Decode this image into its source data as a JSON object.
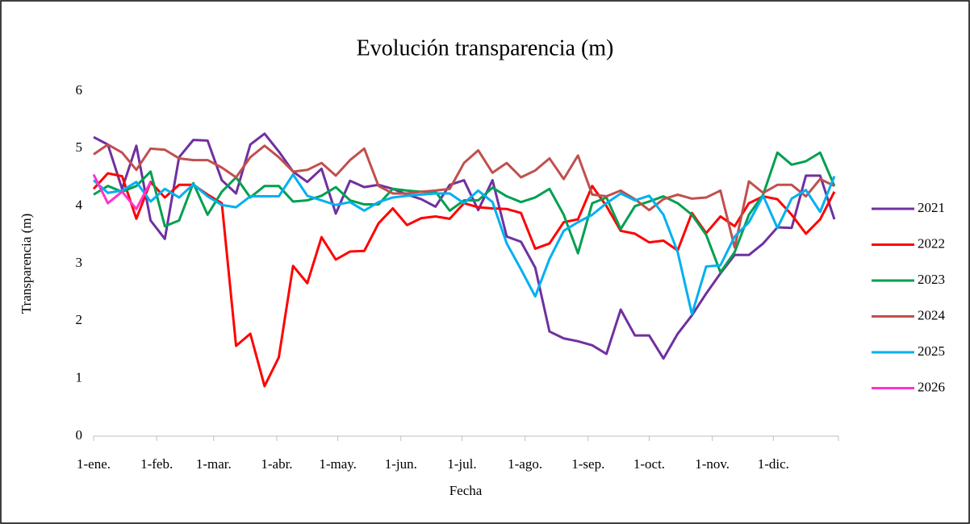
{
  "chart_data": {
    "type": "line",
    "title": "Evolución transparencia (m)",
    "x_label": "Fecha",
    "y_label": "Transparencia (m)",
    "x": [
      0,
      7,
      14,
      21,
      28,
      35,
      42,
      49,
      56,
      63,
      70,
      77,
      84,
      91,
      98,
      105,
      112,
      119,
      126,
      133,
      140,
      147,
      154,
      161,
      168,
      175,
      182,
      189,
      196,
      203,
      210,
      217,
      224,
      231,
      238,
      245,
      252,
      259,
      266,
      273,
      280,
      287,
      294,
      301,
      308,
      315,
      322,
      329,
      336,
      343,
      350,
      357,
      364
    ],
    "xlim": [
      0,
      366
    ],
    "xticks": [
      {
        "value": 0,
        "label": "1-ene."
      },
      {
        "value": 31,
        "label": "1-feb."
      },
      {
        "value": 59,
        "label": "1-mar."
      },
      {
        "value": 90,
        "label": "1-abr."
      },
      {
        "value": 120,
        "label": "1-may."
      },
      {
        "value": 151,
        "label": "1-jun."
      },
      {
        "value": 181,
        "label": "1-jul."
      },
      {
        "value": 212,
        "label": "1-ago."
      },
      {
        "value": 243,
        "label": "1-sep."
      },
      {
        "value": 273,
        "label": "1-oct."
      },
      {
        "value": 304,
        "label": "1-nov."
      },
      {
        "value": 334,
        "label": "1-dic."
      }
    ],
    "ylim": [
      0,
      6
    ],
    "yticks": [
      0,
      1,
      2,
      3,
      4,
      5,
      6
    ],
    "legend": "right",
    "series": [
      {
        "name": "2021",
        "color": "#7030a0",
        "values": [
          5.2,
          5.07,
          4.3,
          5.05,
          3.75,
          3.43,
          4.85,
          5.15,
          5.14,
          4.45,
          4.22,
          5.07,
          5.26,
          4.95,
          4.6,
          4.42,
          4.65,
          3.87,
          4.44,
          4.33,
          4.37,
          4.3,
          4.2,
          4.12,
          3.99,
          4.37,
          4.45,
          3.93,
          4.45,
          3.47,
          3.38,
          2.93,
          1.82,
          1.7,
          1.65,
          1.58,
          1.43,
          2.2,
          1.75,
          1.75,
          1.35,
          1.78,
          2.1,
          2.48,
          2.83,
          3.15,
          3.15,
          3.35,
          3.63,
          3.62,
          4.53,
          4.53,
          3.77
        ]
      },
      {
        "name": "2022",
        "color": "#ff0000",
        "values": [
          4.3,
          4.57,
          4.52,
          3.78,
          4.42,
          4.15,
          4.37,
          4.37,
          4.2,
          4.05,
          1.57,
          1.78,
          0.87,
          1.37,
          2.96,
          2.66,
          3.46,
          3.07,
          3.21,
          3.22,
          3.7,
          3.96,
          3.67,
          3.79,
          3.82,
          3.78,
          4.05,
          3.98,
          3.96,
          3.95,
          3.88,
          3.26,
          3.35,
          3.72,
          3.77,
          4.35,
          4.0,
          3.57,
          3.52,
          3.37,
          3.4,
          3.23,
          3.88,
          3.53,
          3.82,
          3.65,
          4.05,
          4.17,
          4.12,
          3.85,
          3.52,
          3.77,
          4.25
        ]
      },
      {
        "name": "2023",
        "color": "#00a050",
        "values": [
          4.2,
          4.35,
          4.25,
          4.35,
          4.6,
          3.65,
          3.75,
          4.4,
          3.85,
          4.25,
          4.5,
          4.15,
          4.35,
          4.35,
          4.08,
          4.1,
          4.18,
          4.33,
          4.1,
          4.03,
          4.03,
          4.3,
          4.27,
          4.25,
          4.25,
          3.92,
          4.1,
          4.1,
          4.32,
          4.17,
          4.07,
          4.15,
          4.3,
          3.85,
          3.18,
          4.05,
          4.15,
          3.6,
          4.0,
          4.08,
          4.17,
          4.05,
          3.85,
          3.5,
          2.85,
          3.2,
          3.85,
          4.2,
          4.93,
          4.72,
          4.78,
          4.93,
          4.35
        ]
      },
      {
        "name": "2024",
        "color": "#c0504d",
        "values": [
          4.9,
          5.07,
          4.93,
          4.63,
          5.0,
          4.98,
          4.83,
          4.8,
          4.8,
          4.67,
          4.5,
          4.85,
          5.05,
          4.85,
          4.6,
          4.63,
          4.75,
          4.53,
          4.8,
          5.0,
          4.35,
          4.22,
          4.22,
          4.25,
          4.27,
          4.3,
          4.75,
          4.97,
          4.58,
          4.75,
          4.5,
          4.62,
          4.83,
          4.47,
          4.88,
          4.2,
          4.17,
          4.27,
          4.12,
          3.93,
          4.12,
          4.2,
          4.13,
          4.15,
          4.27,
          3.28,
          4.43,
          4.23,
          4.37,
          4.37,
          4.17,
          4.47,
          4.35
        ]
      },
      {
        "name": "2025",
        "color": "#00b0f0",
        "values": [
          4.45,
          4.23,
          4.27,
          4.42,
          4.08,
          4.3,
          4.15,
          4.38,
          4.17,
          4.02,
          3.98,
          4.17,
          4.17,
          4.17,
          4.55,
          4.18,
          4.1,
          4.02,
          4.07,
          3.92,
          4.07,
          4.15,
          4.18,
          4.2,
          4.22,
          4.22,
          4.05,
          4.27,
          4.07,
          3.35,
          2.9,
          2.43,
          3.08,
          3.57,
          3.72,
          3.85,
          4.05,
          4.22,
          4.1,
          4.18,
          3.85,
          3.2,
          2.12,
          2.95,
          2.97,
          3.47,
          3.72,
          4.18,
          3.62,
          4.13,
          4.28,
          3.9,
          4.52
        ]
      },
      {
        "name": "2026",
        "color": "#ff33cc",
        "values": [
          4.55,
          4.05,
          4.25,
          3.95,
          4.42,
          null,
          null,
          null,
          null,
          null,
          null,
          null,
          null,
          null,
          null,
          null,
          null,
          null,
          null,
          null,
          null,
          null,
          null,
          null,
          null,
          null,
          null,
          null,
          null,
          null,
          null,
          null,
          null,
          null,
          null,
          null,
          null,
          null,
          null,
          null,
          null,
          null,
          null,
          null,
          null,
          null,
          null,
          null,
          null,
          null,
          null,
          null,
          null
        ]
      }
    ]
  }
}
